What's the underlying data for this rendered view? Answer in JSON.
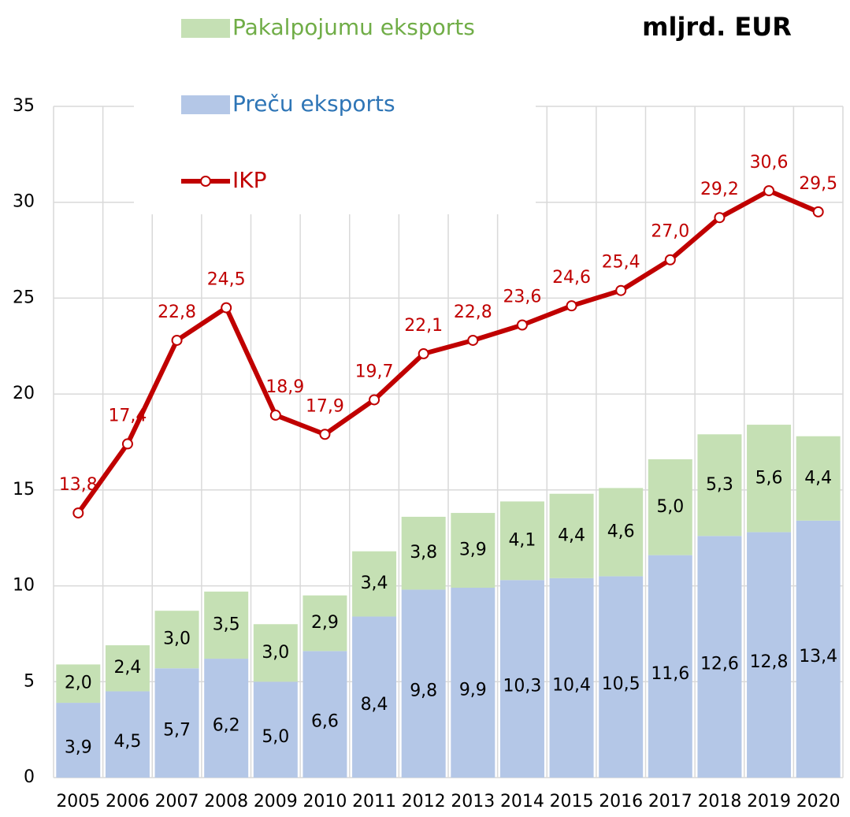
{
  "chart_data": {
    "type": "bar",
    "stacked": true,
    "unit": "mljrd. EUR",
    "categories": [
      "2005",
      "2006",
      "2007",
      "2008",
      "2009",
      "2010",
      "2011",
      "2012",
      "2013",
      "2014",
      "2015",
      "2016",
      "2017",
      "2018",
      "2019",
      "2020"
    ],
    "series": [
      {
        "name": "Preču eksports",
        "type": "bar",
        "color": "#b4c7e7",
        "label_color": "#2e75b6",
        "values": [
          3.9,
          4.5,
          5.7,
          6.2,
          5.0,
          6.6,
          8.4,
          9.8,
          9.9,
          10.3,
          10.4,
          10.5,
          11.6,
          12.6,
          12.8,
          13.4
        ],
        "value_labels": [
          "3,9",
          "4,5",
          "5,7",
          "6,2",
          "5,0",
          "6,6",
          "8,4",
          "9,8",
          "9,9",
          "10,3",
          "10,4",
          "10,5",
          "11,6",
          "12,6",
          "12,8",
          "13,4"
        ]
      },
      {
        "name": "Pakalpojumu eksports",
        "type": "bar",
        "color": "#c5e0b4",
        "label_color": "#70ad47",
        "values": [
          2.0,
          2.4,
          3.0,
          3.5,
          3.0,
          2.9,
          3.4,
          3.8,
          3.9,
          4.1,
          4.4,
          4.6,
          5.0,
          5.3,
          5.6,
          4.4
        ],
        "value_labels": [
          "2,0",
          "2,4",
          "3,0",
          "3,5",
          "3,0",
          "2,9",
          "3,4",
          "3,8",
          "3,9",
          "4,1",
          "4,4",
          "4,6",
          "5,0",
          "5,3",
          "5,6",
          "4,4"
        ]
      },
      {
        "name": "IKP",
        "type": "line",
        "color": "#c00000",
        "label_color": "#c00000",
        "values": [
          13.8,
          17.4,
          22.8,
          24.5,
          18.9,
          17.9,
          19.7,
          22.1,
          22.8,
          23.6,
          24.6,
          25.4,
          27.0,
          29.2,
          30.6,
          29.5
        ],
        "value_labels": [
          "13,8",
          "17,4",
          "22,8",
          "24,5",
          "18,9",
          "17,9",
          "19,7",
          "22,1",
          "22,8",
          "23,6",
          "24,6",
          "25,4",
          "27,0",
          "29,2",
          "30,6",
          "29,5"
        ]
      }
    ],
    "ylim": [
      0,
      35
    ],
    "yticks": [
      0,
      5,
      10,
      15,
      20,
      25,
      30,
      35
    ],
    "grid": true
  }
}
